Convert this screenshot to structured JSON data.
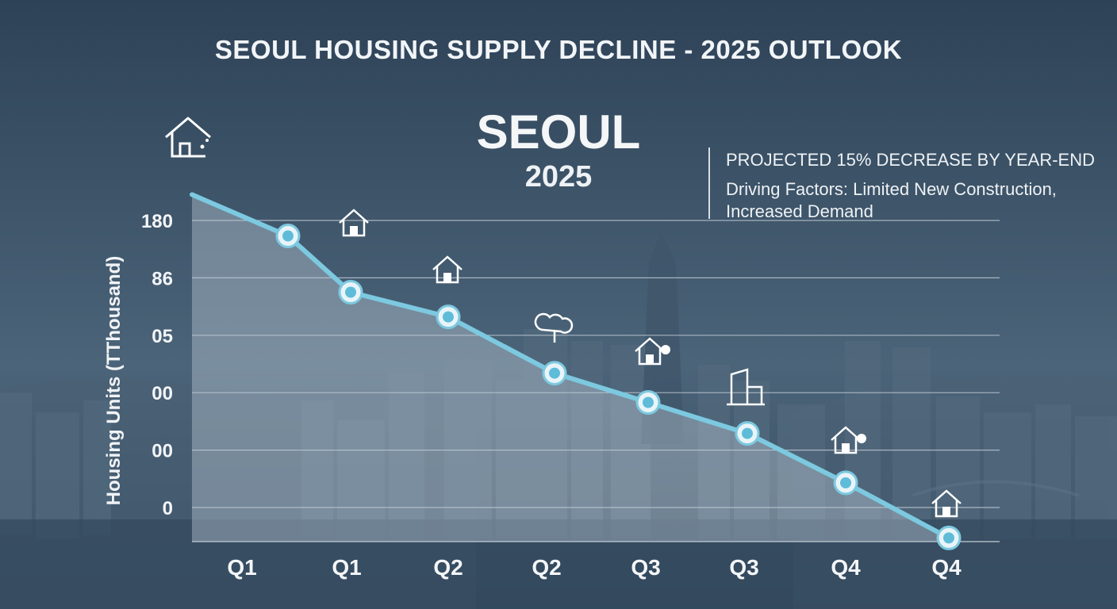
{
  "header": {
    "title": "SEOUL HOUSING SUPPLY DECLINE - 2025 OUTLOOK"
  },
  "headline": {
    "city": "SEOUL",
    "year": "2025"
  },
  "notes": {
    "line1": "PROJECTED 15% DECREASE BY YEAR-END",
    "line2": "Driving Factors: Limited New Construction,",
    "line3": "Increased Demand"
  },
  "colors": {
    "line": "#7cc9e0",
    "marker_fill": "#5fbcd9",
    "area": "#b9c8d4",
    "grid": "#c9d3dc"
  },
  "chart_data": {
    "type": "area",
    "title": "SEOUL HOUSING SUPPLY DECLINE - 2025 OUTLOOK",
    "xlabel": "",
    "ylabel": "Housing Units (TThousand)",
    "y_tick_labels": [
      "180",
      "86",
      "05",
      "00",
      "00",
      "0"
    ],
    "y_tick_positions": [
      5,
      4,
      3,
      2,
      1,
      0
    ],
    "ylim": [
      -0.6,
      5
    ],
    "categories": [
      "Q1",
      "Q1",
      "Q2",
      "Q2",
      "Q3",
      "Q3",
      "Q4",
      "Q4"
    ],
    "series": [
      {
        "name": "Housing Units",
        "start_value": 5.45,
        "values": [
          4.73,
          3.75,
          3.32,
          2.34,
          1.83,
          1.29,
          0.43,
          -0.53
        ]
      }
    ],
    "icons": [
      "house-icon",
      "house-icon",
      "house-icon",
      "tree-pin-icon",
      "house-tree-icon",
      "building-icon",
      "house-tree-icon",
      "house-icon"
    ],
    "grid": true
  }
}
